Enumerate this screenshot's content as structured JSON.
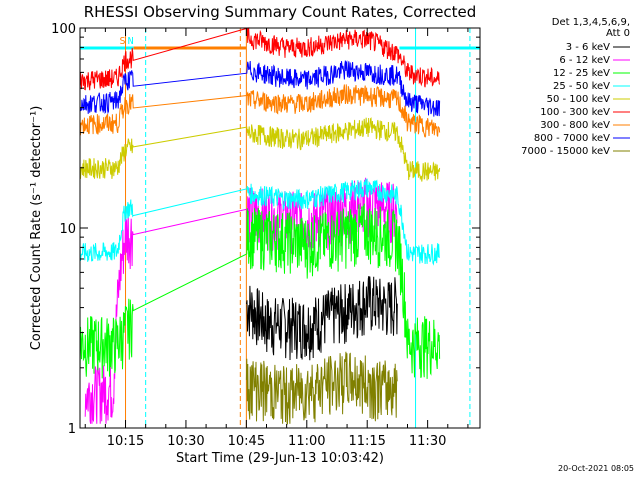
{
  "chart_data": {
    "type": "line",
    "title": "RHESSI Observing Summary Count Rates, Corrected",
    "xlabel": "Start Time (29-Jun-13 10:03:42)",
    "ylabel": "Corrected Count Rate (s⁻¹ detector⁻¹)",
    "yscale": "log",
    "ylim": [
      1,
      100
    ],
    "xlim": [
      "10:03:42",
      "11:43:00"
    ],
    "x_ticks": [
      "10:15",
      "10:30",
      "10:45",
      "11:00",
      "11:15",
      "11:30"
    ],
    "y_ticks": [
      "1",
      "10",
      "100"
    ],
    "legend_header": [
      "Det 1,3,4,5,6,9,",
      "Att 0"
    ],
    "legend_position": "top-right",
    "series": [
      {
        "name": "3 - 6 keV",
        "color": "#000000",
        "x": [
          "10:40:00",
          "10:45:00",
          "10:50:00",
          "11:00:00",
          "11:10:00",
          "11:15:00",
          "11:20:00",
          "11:22:30"
        ],
        "y": [
          3.5,
          4.2,
          3.4,
          3.3,
          4.0,
          4.4,
          4.1,
          4.3
        ]
      },
      {
        "name": "6 - 12 keV",
        "color": "#ff00ff",
        "x": [
          "10:05:00",
          "10:12:00",
          "10:15:00",
          "10:45:00",
          "10:55:00",
          "11:00:00",
          "11:15:00",
          "11:22:30"
        ],
        "y": [
          1.5,
          1.6,
          9.5,
          12.0,
          11.5,
          11.0,
          13.5,
          12.5
        ]
      },
      {
        "name": "12 - 25 keV",
        "color": "#00ff00",
        "x": [
          "10:03:42",
          "10:13:00",
          "10:45:00",
          "10:55:00",
          "11:00:00",
          "11:15:00",
          "11:22:30",
          "11:25:00",
          "11:33:00"
        ],
        "y": [
          2.7,
          2.7,
          9.5,
          9.0,
          8.5,
          10.0,
          9.0,
          2.7,
          2.7
        ]
      },
      {
        "name": "25 - 50 keV",
        "color": "#00ffff",
        "x": [
          "10:03:42",
          "10:13:00",
          "10:15:00",
          "10:45:00",
          "10:55:00",
          "11:00:00",
          "11:15:00",
          "11:22:30",
          "11:25:00",
          "11:33:00"
        ],
        "y": [
          7.5,
          7.6,
          12.5,
          15.0,
          14.0,
          14.0,
          16.0,
          14.5,
          7.5,
          7.5
        ]
      },
      {
        "name": "50 - 100 keV",
        "color": "#cccc00",
        "x": [
          "10:03:42",
          "10:13:00",
          "10:15:00",
          "10:45:00",
          "10:55:00",
          "11:00:00",
          "11:15:00",
          "11:22:30",
          "11:25:00",
          "11:33:00"
        ],
        "y": [
          20.0,
          20.0,
          25.0,
          30.0,
          28.0,
          28.0,
          32.0,
          30.0,
          19.5,
          19.0
        ]
      },
      {
        "name": "100 - 300 keV",
        "color": "#ff0000",
        "x": [
          "10:03:42",
          "10:13:00",
          "10:15:00",
          "10:45:00",
          "10:55:00",
          "11:00:00",
          "11:10:00",
          "11:15:00",
          "11:22:30",
          "11:25:00",
          "11:33:00"
        ],
        "y": [
          55.0,
          56.0,
          70.0,
          90.0,
          80.0,
          80.0,
          88.0,
          88.0,
          75.0,
          60.0,
          55.0
        ]
      },
      {
        "name": "300 - 800 keV",
        "color": "#ff7f00",
        "x": [
          "10:03:42",
          "10:13:00",
          "10:15:00",
          "10:45:00",
          "10:55:00",
          "11:00:00",
          "11:10:00",
          "11:15:00",
          "11:22:30",
          "11:25:00",
          "11:33:00"
        ],
        "y": [
          33.0,
          33.5,
          42.0,
          44.0,
          42.0,
          42.0,
          47.0,
          46.0,
          44.0,
          34.0,
          31.0
        ]
      },
      {
        "name": "800 - 7000 keV",
        "color": "#0000ff",
        "x": [
          "10:03:42",
          "10:13:00",
          "10:15:00",
          "10:45:00",
          "10:55:00",
          "11:00:00",
          "11:10:00",
          "11:15:00",
          "11:22:30",
          "11:25:00",
          "11:33:00"
        ],
        "y": [
          42.0,
          43.0,
          55.0,
          62.0,
          56.0,
          55.0,
          62.0,
          60.0,
          58.0,
          43.0,
          40.0
        ]
      },
      {
        "name": "7000 - 15000 keV",
        "color": "#808000",
        "x": [
          "10:45:00",
          "10:55:00",
          "11:00:00",
          "11:10:00",
          "11:15:00",
          "11:20:00",
          "11:22:30"
        ],
        "y": [
          1.7,
          1.5,
          1.6,
          1.8,
          1.7,
          1.6,
          1.7
        ]
      }
    ],
    "annotations": [
      {
        "text": "S",
        "x": "10:15:00",
        "color": "#ff7f00"
      },
      {
        "text": "N",
        "x": "10:17:00",
        "color": "#00ffff"
      }
    ],
    "vertical_markers": [
      {
        "x": "10:03:42",
        "color": "#00ffff",
        "style": "dashed"
      },
      {
        "x": "10:15:00",
        "color": "#ff7f00",
        "style": "solid"
      },
      {
        "x": "10:20:00",
        "color": "#00ffff",
        "style": "dashed"
      },
      {
        "x": "10:43:30",
        "color": "#ff7f00",
        "style": "dashed"
      },
      {
        "x": "10:45:00",
        "color": "#ff7f00",
        "style": "solid"
      },
      {
        "x": "11:27:00",
        "color": "#00ffff",
        "style": "solid"
      },
      {
        "x": "11:40:30",
        "color": "#00ffff",
        "style": "dashed"
      }
    ],
    "top_bars": [
      {
        "x": [
          "10:03:42",
          "10:17:00"
        ],
        "color": "#00ffff"
      },
      {
        "x": [
          "10:17:00",
          "10:45:00"
        ],
        "color": "#ff7f00"
      },
      {
        "x": [
          "11:23:00",
          "11:43:00"
        ],
        "color": "#00ffff"
      }
    ],
    "grid": false
  },
  "footer": {
    "timestamp": "20-Oct-2021 08:05"
  }
}
